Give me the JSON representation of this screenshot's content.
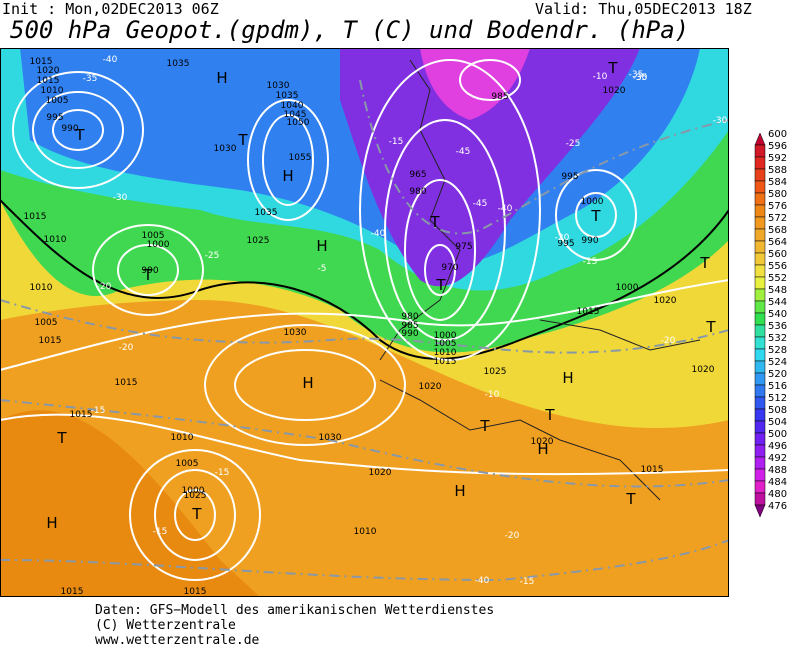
{
  "header": {
    "init": "Init : Mon,02DEC2013 06Z",
    "valid": "Valid: Thu,05DEC2013 18Z",
    "title": "500 hPa Geopot.(gpdm), T (C) und Bodendr. (hPa)"
  },
  "colorbar": {
    "levels": [
      600,
      596,
      592,
      588,
      584,
      580,
      576,
      572,
      568,
      564,
      560,
      556,
      552,
      548,
      544,
      540,
      536,
      532,
      528,
      524,
      520,
      516,
      512,
      508,
      504,
      500,
      496,
      492,
      488,
      484,
      480,
      476
    ],
    "colors": [
      "#c00030",
      "#d01828",
      "#e02820",
      "#e84018",
      "#f05818",
      "#f07018",
      "#f08818",
      "#f09820",
      "#f0a828",
      "#f0b830",
      "#f0c838",
      "#f0e040",
      "#e8f040",
      "#a0f040",
      "#60e848",
      "#30e050",
      "#30e0a0",
      "#30e0d0",
      "#30d8f0",
      "#30b8f0",
      "#3098f0",
      "#3078f0",
      "#3058f0",
      "#3838f0",
      "#5028f0",
      "#7020f0",
      "#9020f0",
      "#b020f0",
      "#d020e8",
      "#e020c8",
      "#c010a0",
      "#800080"
    ]
  },
  "map_labels": [
    "H",
    "H",
    "H",
    "H",
    "H",
    "H",
    "H",
    "H",
    "T",
    "T",
    "T",
    "T",
    "T",
    "T",
    "T",
    "T",
    "T",
    "T",
    "T",
    "T",
    "T",
    "T",
    "1020",
    "1015",
    "1010",
    "1005",
    "995",
    "990",
    "1035",
    "1030",
    "1035",
    "1040",
    "1045",
    "1050",
    "1055",
    "1030",
    "1035",
    "1025",
    "1015",
    "1010",
    "1005",
    "1000",
    "990",
    "1010",
    "1005",
    "1015",
    "1030",
    "1030",
    "1015",
    "1015",
    "1010",
    "1005",
    "1000",
    "1025",
    "1020",
    "1010",
    "1015",
    "985",
    "965",
    "980",
    "975",
    "970",
    "980",
    "985",
    "990",
    "1000",
    "1005",
    "1010",
    "1015",
    "1020",
    "1025",
    "1020",
    "1020",
    "995",
    "1000",
    "990",
    "995",
    "1000",
    "1015",
    "1020",
    "1020",
    "1015",
    "1015",
    "1015",
    "-40",
    "-35",
    "-30",
    "-25",
    "-20",
    "-20",
    "-15",
    "-15",
    "-15",
    "-15",
    "-45",
    "-45",
    "-40",
    "-40",
    "-5",
    "-10",
    "-35",
    "-30",
    "-25",
    "-20",
    "-20",
    "-15",
    "-10",
    "-20",
    "-15",
    "-30",
    "-35",
    "-40"
  ],
  "footer": [
    "Daten: GFS−Modell des amerikanischen Wetterdienstes",
    "(C) Wetterzentrale",
    "www.wetterzentrale.de"
  ]
}
